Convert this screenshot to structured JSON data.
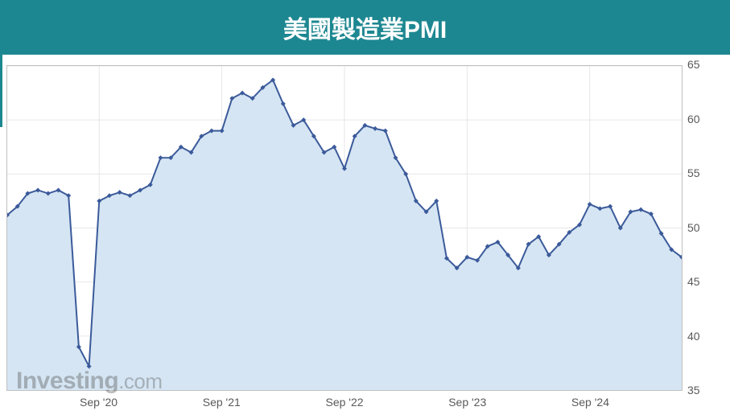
{
  "title": {
    "text": "美國製造業PMI",
    "bg_color": "#1d8791",
    "text_color": "#ffffff",
    "font_size": 30
  },
  "watermark": {
    "brand": "Investing",
    "suffix": ".com"
  },
  "chart": {
    "type": "area-line",
    "line_color": "#3b5a9a",
    "fill_color": "#d5e5f3",
    "marker_color": "#3b5a9a",
    "marker_size": 3,
    "line_width": 2,
    "grid_color": "#e6e6e6",
    "border_color": "#c0c0c0",
    "background_color": "#ffffff",
    "y_axis": {
      "min": 35,
      "max": 65,
      "ticks": [
        35,
        40,
        45,
        50,
        55,
        60,
        65
      ],
      "label_fontsize": 14,
      "label_color": "#595959"
    },
    "x_axis": {
      "ticks": [
        {
          "label": "Sep '20",
          "index": 9
        },
        {
          "label": "Sep '21",
          "index": 21
        },
        {
          "label": "Sep '22",
          "index": 33
        },
        {
          "label": "Sep '23",
          "index": 45
        },
        {
          "label": "Sep '24",
          "index": 57
        }
      ],
      "label_fontsize": 14,
      "label_color": "#595959"
    },
    "data": [
      51.2,
      52.0,
      53.2,
      53.5,
      53.2,
      53.5,
      53.0,
      39.0,
      37.2,
      52.5,
      53.0,
      53.3,
      53.0,
      53.5,
      54.0,
      56.5,
      56.5,
      57.5,
      57.0,
      58.5,
      59.0,
      59.0,
      62.0,
      62.5,
      62.0,
      63.0,
      63.7,
      61.5,
      59.5,
      60.0,
      58.5,
      57.0,
      57.5,
      55.5,
      58.5,
      59.5,
      59.2,
      59.0,
      56.5,
      55.0,
      52.5,
      51.5,
      52.5,
      47.2,
      46.3,
      47.3,
      47.0,
      48.3,
      48.7,
      47.5,
      46.3,
      48.5,
      49.2,
      47.5,
      48.5,
      49.6,
      50.3,
      52.2,
      51.8,
      52.0,
      50.0,
      51.5,
      51.7,
      51.3,
      49.5,
      48.0,
      47.3
    ]
  }
}
